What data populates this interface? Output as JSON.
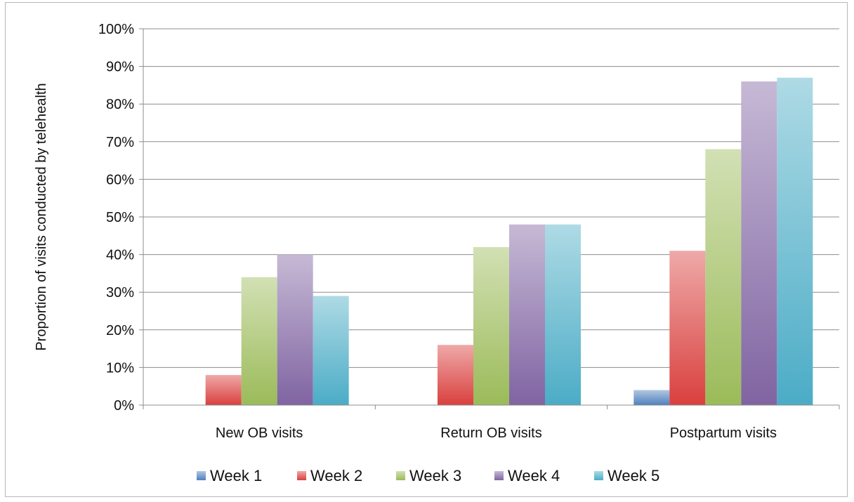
{
  "chart_data": {
    "type": "bar",
    "title": "",
    "xlabel": "",
    "ylabel": "Proportion of visits conducted by telehealth",
    "ylim": [
      0,
      100
    ],
    "ytick_format": "percent",
    "yticks": [
      "0%",
      "10%",
      "20%",
      "30%",
      "40%",
      "50%",
      "60%",
      "70%",
      "80%",
      "90%",
      "100%"
    ],
    "grid": true,
    "legend_position": "bottom",
    "categories": [
      "New OB visits",
      "Return OB visits",
      "Postpartum visits"
    ],
    "series": [
      {
        "name": "Week 1",
        "color": "#4f81bd",
        "values": [
          0,
          0,
          4
        ]
      },
      {
        "name": "Week 2",
        "color": "#d9403e",
        "values": [
          8,
          16,
          41
        ]
      },
      {
        "name": "Week 3",
        "color": "#9bbb59",
        "values": [
          34,
          42,
          68
        ]
      },
      {
        "name": "Week 4",
        "color": "#8064a2",
        "values": [
          40,
          48,
          86
        ]
      },
      {
        "name": "Week 5",
        "color": "#4bacc6",
        "values": [
          29,
          48,
          87
        ]
      }
    ]
  }
}
